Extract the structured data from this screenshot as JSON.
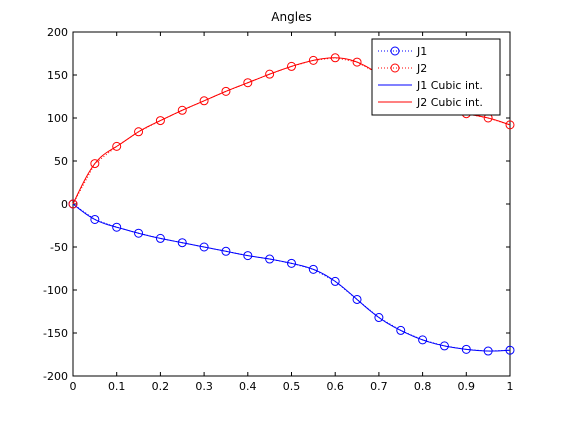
{
  "chart_data": {
    "type": "line",
    "title": "Angles",
    "xlabel": "",
    "ylabel": "",
    "xlim": [
      0,
      1
    ],
    "ylim": [
      -200,
      200
    ],
    "xticks": [
      "0",
      "0.1",
      "0.2",
      "0.3",
      "0.4",
      "0.5",
      "0.6",
      "0.7",
      "0.8",
      "0.9",
      "1"
    ],
    "yticks": [
      "200",
      "150",
      "100",
      "50",
      "0",
      "-50",
      "-100",
      "-150",
      "-200"
    ],
    "grid": false,
    "legend_position": "top-right",
    "x": [
      0,
      0.05,
      0.1,
      0.15,
      0.2,
      0.25,
      0.3,
      0.35,
      0.4,
      0.45,
      0.5,
      0.55,
      0.6,
      0.65,
      0.7,
      0.75,
      0.8,
      0.85,
      0.9,
      0.95,
      1
    ],
    "series": [
      {
        "name": "J1",
        "style": "dotted-circle-markers",
        "color": "#0000ff",
        "values": [
          0,
          -18,
          -27,
          -34,
          -40,
          -45,
          -50,
          -55,
          -60,
          -64,
          -69,
          -76,
          -90,
          -111,
          -132,
          -147,
          -158,
          -165,
          -169,
          -171,
          -170
        ]
      },
      {
        "name": "J2",
        "style": "dotted-circle-markers",
        "color": "#ff0000",
        "values": [
          0,
          47,
          67,
          84,
          97,
          109,
          120,
          131,
          141,
          151,
          160,
          167,
          170,
          165,
          151,
          135,
          122,
          112,
          105,
          100,
          92
        ]
      },
      {
        "name": "J1 Cubic int.",
        "style": "solid",
        "color": "#0000ff",
        "source": "J1"
      },
      {
        "name": "J2 Cubic int.",
        "style": "solid",
        "color": "#ff0000",
        "source": "J2"
      }
    ]
  }
}
